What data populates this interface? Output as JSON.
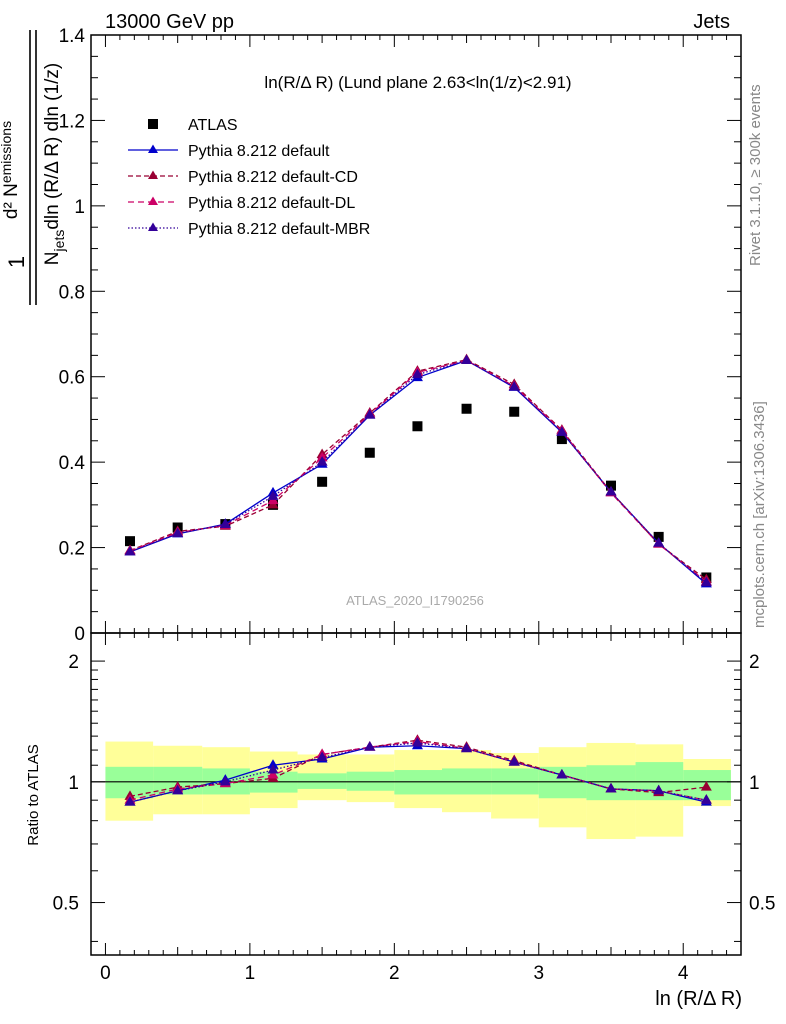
{
  "header": {
    "left": "13000 GeV pp",
    "right": "Jets"
  },
  "plot_title": "ln(R/Δ R) (Lund plane 2.63<ln(1/z)<2.91)",
  "watermark": "ATLAS_2020_I1790256",
  "side_texts": {
    "rivet": "Rivet 3.1.10, ≥ 300k events",
    "mcplots": "mcplots.cern.ch [arXiv:1306.3436]"
  },
  "y_label_main": {
    "numerator": "d² N",
    "numerator_sub": "emissions",
    "den_n": "N",
    "den_sub": "jets",
    "den_rest": "dln (R/Δ R) dln (1/z)",
    "one": "1"
  },
  "x_label": "ln (R/Δ R)",
  "y_label_ratio": "Ratio to ATLAS",
  "colors": {
    "data": "#000000",
    "default": "#0000cc",
    "cd": "#990033",
    "dl": "#cc0066",
    "mbr": "#330099",
    "band_inner": "#99ff99",
    "band_outer": "#ffff99"
  },
  "chart_data": {
    "type": "scatter",
    "x": [
      0.17,
      0.5,
      0.83,
      1.16,
      1.5,
      1.83,
      2.16,
      2.5,
      2.83,
      3.16,
      3.5,
      3.83,
      4.16
    ],
    "bin_edges": [
      0,
      0.33,
      0.67,
      1.0,
      1.33,
      1.67,
      2.0,
      2.33,
      2.67,
      3.0,
      3.33,
      3.67,
      4.0,
      4.33
    ],
    "xlim": [
      -0.1,
      4.4
    ],
    "xticks": [
      0,
      1,
      2,
      3,
      4
    ],
    "main": {
      "ylim": [
        0,
        1.4
      ],
      "yticks": [
        0,
        0.2,
        0.4,
        0.6,
        0.8,
        1,
        1.2,
        1.4
      ],
      "series": [
        {
          "key": "data",
          "name": "ATLAS",
          "values": [
            0.215,
            0.247,
            0.255,
            0.3,
            0.354,
            0.422,
            0.484,
            0.525,
            0.518,
            0.454,
            0.345,
            0.225,
            0.13
          ]
        },
        {
          "key": "default",
          "name": "Pythia 8.212 default",
          "values": [
            0.19,
            0.232,
            0.255,
            0.328,
            0.395,
            0.51,
            0.598,
            0.638,
            0.575,
            0.47,
            0.33,
            0.21,
            0.115
          ]
        },
        {
          "key": "cd",
          "name": "Pythia 8.212 default-CD",
          "values": [
            0.193,
            0.238,
            0.25,
            0.3,
            0.418,
            0.515,
            0.613,
            0.64,
            0.582,
            0.475,
            0.33,
            0.208,
            0.125
          ]
        },
        {
          "key": "dl",
          "name": "Pythia 8.212 default-DL",
          "values": [
            0.192,
            0.235,
            0.252,
            0.31,
            0.41,
            0.512,
            0.61,
            0.638,
            0.578,
            0.473,
            0.328,
            0.208,
            0.12
          ]
        },
        {
          "key": "mbr",
          "name": "Pythia 8.212 default-MBR",
          "values": [
            0.19,
            0.233,
            0.254,
            0.32,
            0.4,
            0.51,
            0.605,
            0.638,
            0.576,
            0.47,
            0.33,
            0.21,
            0.118
          ]
        }
      ]
    },
    "ratio": {
      "ylim": [
        0.37,
        2.35
      ],
      "yscale": "log",
      "yticks": [
        0.5,
        1,
        2
      ],
      "bands": {
        "inner_lo": [
          0.91,
          0.93,
          0.93,
          0.94,
          0.96,
          0.95,
          0.93,
          0.93,
          0.93,
          0.91,
          0.9,
          0.9,
          0.9
        ],
        "inner_hi": [
          1.09,
          1.09,
          1.08,
          1.06,
          1.05,
          1.06,
          1.07,
          1.08,
          1.08,
          1.09,
          1.1,
          1.12,
          1.07
        ],
        "outer_lo": [
          0.8,
          0.83,
          0.83,
          0.86,
          0.9,
          0.89,
          0.86,
          0.84,
          0.81,
          0.77,
          0.72,
          0.73,
          0.87
        ],
        "outer_hi": [
          1.26,
          1.23,
          1.22,
          1.19,
          1.17,
          1.17,
          1.2,
          1.2,
          1.18,
          1.22,
          1.25,
          1.24,
          1.14
        ]
      },
      "series": [
        {
          "key": "default",
          "name": "Pythia 8.212 default",
          "values": [
            0.89,
            0.95,
            1.01,
            1.1,
            1.14,
            1.22,
            1.23,
            1.21,
            1.12,
            1.04,
            0.96,
            0.95,
            0.89
          ]
        },
        {
          "key": "cd",
          "name": "Pythia 8.212 default-CD",
          "values": [
            0.92,
            0.97,
            0.99,
            1.02,
            1.17,
            1.22,
            1.27,
            1.22,
            1.13,
            1.04,
            0.96,
            0.94,
            0.97
          ]
        },
        {
          "key": "dl",
          "name": "Pythia 8.212 default-DL",
          "values": [
            0.9,
            0.96,
            0.99,
            1.04,
            1.17,
            1.22,
            1.26,
            1.21,
            1.12,
            1.04,
            0.96,
            0.95,
            0.9
          ]
        },
        {
          "key": "mbr",
          "name": "Pythia 8.212 default-MBR",
          "values": [
            0.89,
            0.95,
            1.0,
            1.07,
            1.15,
            1.22,
            1.25,
            1.21,
            1.12,
            1.04,
            0.96,
            0.95,
            0.9
          ]
        }
      ]
    }
  }
}
